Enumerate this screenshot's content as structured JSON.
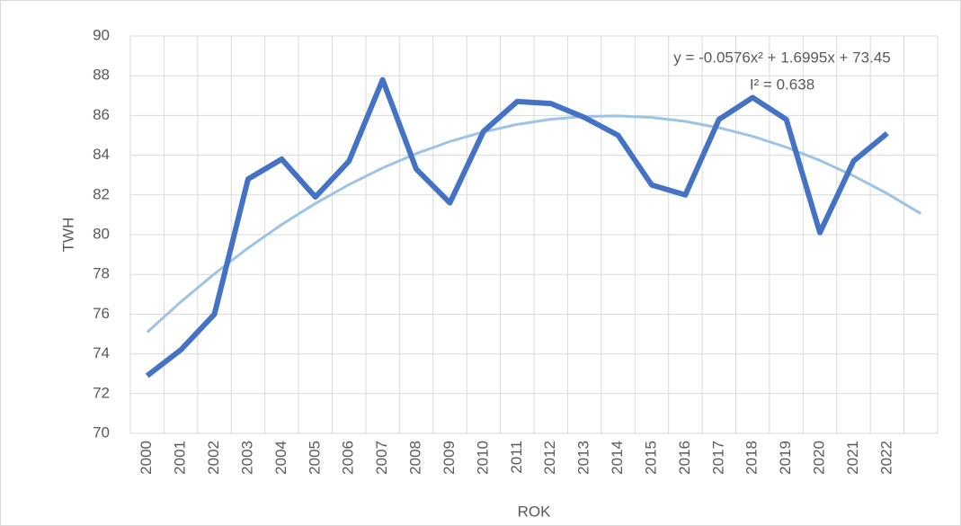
{
  "chart_data": {
    "type": "line",
    "x_label": "ROK",
    "y_label": "TWH",
    "categories": [
      "2000",
      "2001",
      "2002",
      "2003",
      "2004",
      "2005",
      "2006",
      "2007",
      "2008",
      "2009",
      "2010",
      "2011",
      "2012",
      "2013",
      "2014",
      "2015",
      "2016",
      "2017",
      "2018",
      "2019",
      "2020",
      "2021",
      "2022",
      null
    ],
    "series": [
      {
        "color": "#4472c4",
        "values": [
          72.9,
          74.2,
          76.0,
          82.8,
          83.8,
          81.9,
          83.7,
          87.8,
          83.3,
          81.6,
          85.2,
          86.7,
          86.6,
          85.9,
          85.0,
          82.5,
          82.0,
          85.8,
          86.9,
          85.8,
          80.1,
          83.7,
          85.1,
          null
        ]
      }
    ],
    "trendline": {
      "color": "#9dc3e6",
      "values": [
        75.09,
        76.62,
        78.03,
        79.33,
        80.51,
        81.57,
        82.52,
        83.36,
        84.08,
        84.69,
        85.17,
        85.55,
        85.81,
        85.95,
        85.98,
        85.9,
        85.7,
        85.38,
        84.95,
        84.4,
        83.74,
        82.96,
        82.07,
        81.06
      ]
    },
    "annotations": [
      "y = -0.0576x² + 1.6995x + 73.45",
      "I² = 0.638"
    ],
    "ylim": [
      70,
      90
    ],
    "yticks": [
      70,
      72,
      74,
      76,
      78,
      80,
      82,
      84,
      86,
      88,
      90
    ],
    "grid": true
  }
}
